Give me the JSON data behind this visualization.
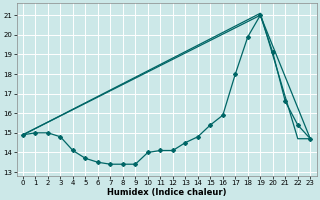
{
  "xlabel": "Humidex (Indice chaleur)",
  "background_color": "#cce8e8",
  "grid_color": "#ffffff",
  "line_color": "#006666",
  "xlim": [
    -0.5,
    23.5
  ],
  "ylim": [
    12.8,
    21.6
  ],
  "yticks": [
    13,
    14,
    15,
    16,
    17,
    18,
    19,
    20,
    21
  ],
  "xticks": [
    0,
    1,
    2,
    3,
    4,
    5,
    6,
    7,
    8,
    9,
    10,
    11,
    12,
    13,
    14,
    15,
    16,
    17,
    18,
    19,
    20,
    21,
    22,
    23
  ],
  "series1_x": [
    0,
    1,
    2,
    3,
    4,
    5,
    6,
    7,
    8,
    9,
    10,
    11,
    12,
    13,
    14,
    15,
    16,
    17,
    18,
    19,
    20,
    21,
    22,
    23
  ],
  "series1_y": [
    14.9,
    15.0,
    15.0,
    14.8,
    14.1,
    13.7,
    13.5,
    13.4,
    13.4,
    13.4,
    14.0,
    14.1,
    14.1,
    14.5,
    14.8,
    15.4,
    15.9,
    18.0,
    19.9,
    21.0,
    19.1,
    16.6,
    15.4,
    14.7
  ],
  "series2_x": [
    0,
    19,
    22,
    23
  ],
  "series2_y": [
    14.9,
    21.1,
    14.7,
    14.7
  ],
  "series3_x": [
    0,
    19,
    23
  ],
  "series3_y": [
    14.9,
    21.0,
    14.7
  ]
}
